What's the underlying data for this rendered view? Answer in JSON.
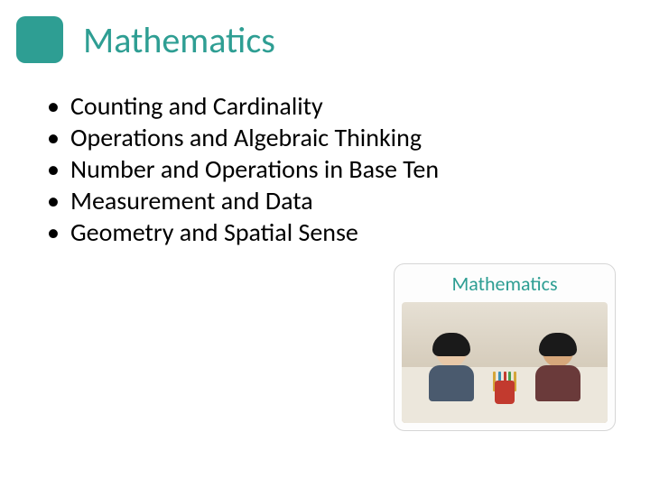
{
  "header": {
    "icon_bg_color": "#2e9e93",
    "title": "Mathematics",
    "title_color": "#2e9e93"
  },
  "bullets": {
    "items": [
      "Counting and Cardinality",
      "Operations and Algebraic Thinking",
      "Number and Operations in Base Ten",
      "Measurement and Data",
      "Geometry and Spatial Sense"
    ]
  },
  "card": {
    "label": "Mathematics",
    "label_color": "#2e9e93",
    "photo": {
      "desk_color": "#ece7dc",
      "kid_left": {
        "skin": "#e8c8a8",
        "hair": "#1a1a1a",
        "shirt": "#4a5a6e"
      },
      "kid_right": {
        "skin": "#d6a77b",
        "hair": "#1a1a1a",
        "shirt": "#6a3a3a"
      },
      "cup_color": "#c23a2e",
      "pencil_colors": [
        "#d4a53a",
        "#3a8fb5",
        "#c23a2e",
        "#4a9e4a",
        "#d4a53a"
      ]
    }
  }
}
